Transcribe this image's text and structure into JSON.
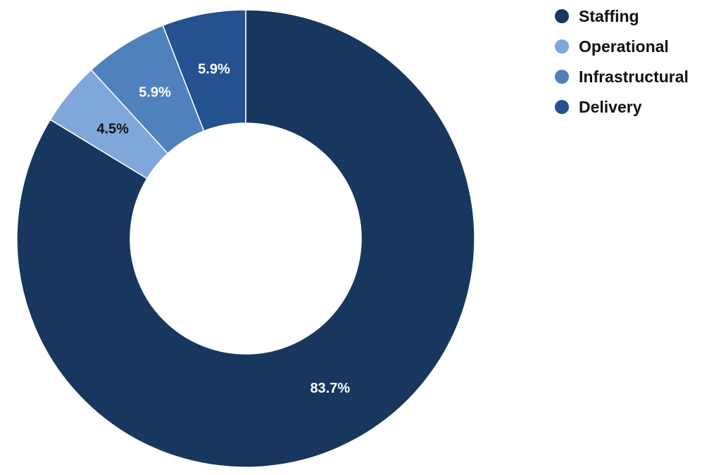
{
  "chart_data": {
    "type": "pie",
    "title": "",
    "legend_position": "top-right",
    "slices": [
      {
        "name": "Staffing",
        "value": 83.7,
        "label": "83.7%",
        "color": "#17375e",
        "label_color": "#ffffff"
      },
      {
        "name": "Operational",
        "value": 4.5,
        "label": "4.5%",
        "color": "#7fa7d9",
        "label_color": "#111111"
      },
      {
        "name": "Infrastructural",
        "value": 5.9,
        "label": "5.9%",
        "color": "#4f81bd",
        "label_color": "#ffffff"
      },
      {
        "name": "Delivery",
        "value": 5.9,
        "label": "5.9%",
        "color": "#24518f",
        "label_color": "#ffffff"
      }
    ]
  }
}
